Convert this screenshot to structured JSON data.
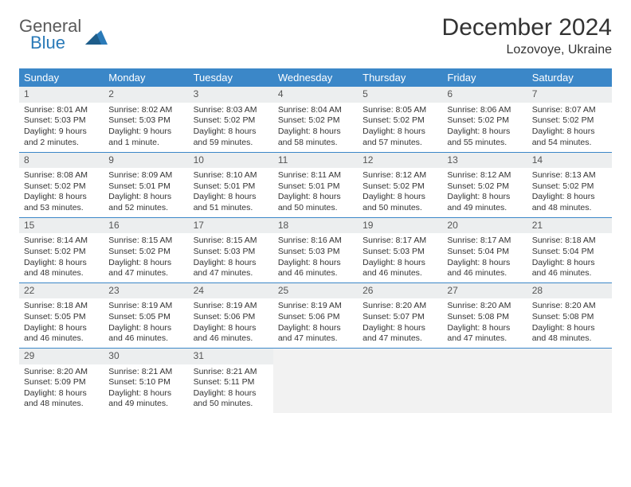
{
  "brand": {
    "line1": "General",
    "line2": "Blue"
  },
  "title": "December 2024",
  "location": "Lozovoye, Ukraine",
  "colors": {
    "header_bg": "#3b87c8",
    "header_text": "#ffffff",
    "daynum_bg": "#eceeef",
    "row_border": "#3b87c8",
    "empty_bg": "#f2f2f2",
    "brand_gray": "#5a5a5a",
    "brand_blue": "#2a7ab8"
  },
  "weekdays": [
    "Sunday",
    "Monday",
    "Tuesday",
    "Wednesday",
    "Thursday",
    "Friday",
    "Saturday"
  ],
  "weeks": [
    [
      {
        "n": "1",
        "sr": "Sunrise: 8:01 AM",
        "ss": "Sunset: 5:03 PM",
        "dl": "Daylight: 9 hours and 2 minutes."
      },
      {
        "n": "2",
        "sr": "Sunrise: 8:02 AM",
        "ss": "Sunset: 5:03 PM",
        "dl": "Daylight: 9 hours and 1 minute."
      },
      {
        "n": "3",
        "sr": "Sunrise: 8:03 AM",
        "ss": "Sunset: 5:02 PM",
        "dl": "Daylight: 8 hours and 59 minutes."
      },
      {
        "n": "4",
        "sr": "Sunrise: 8:04 AM",
        "ss": "Sunset: 5:02 PM",
        "dl": "Daylight: 8 hours and 58 minutes."
      },
      {
        "n": "5",
        "sr": "Sunrise: 8:05 AM",
        "ss": "Sunset: 5:02 PM",
        "dl": "Daylight: 8 hours and 57 minutes."
      },
      {
        "n": "6",
        "sr": "Sunrise: 8:06 AM",
        "ss": "Sunset: 5:02 PM",
        "dl": "Daylight: 8 hours and 55 minutes."
      },
      {
        "n": "7",
        "sr": "Sunrise: 8:07 AM",
        "ss": "Sunset: 5:02 PM",
        "dl": "Daylight: 8 hours and 54 minutes."
      }
    ],
    [
      {
        "n": "8",
        "sr": "Sunrise: 8:08 AM",
        "ss": "Sunset: 5:02 PM",
        "dl": "Daylight: 8 hours and 53 minutes."
      },
      {
        "n": "9",
        "sr": "Sunrise: 8:09 AM",
        "ss": "Sunset: 5:01 PM",
        "dl": "Daylight: 8 hours and 52 minutes."
      },
      {
        "n": "10",
        "sr": "Sunrise: 8:10 AM",
        "ss": "Sunset: 5:01 PM",
        "dl": "Daylight: 8 hours and 51 minutes."
      },
      {
        "n": "11",
        "sr": "Sunrise: 8:11 AM",
        "ss": "Sunset: 5:01 PM",
        "dl": "Daylight: 8 hours and 50 minutes."
      },
      {
        "n": "12",
        "sr": "Sunrise: 8:12 AM",
        "ss": "Sunset: 5:02 PM",
        "dl": "Daylight: 8 hours and 50 minutes."
      },
      {
        "n": "13",
        "sr": "Sunrise: 8:12 AM",
        "ss": "Sunset: 5:02 PM",
        "dl": "Daylight: 8 hours and 49 minutes."
      },
      {
        "n": "14",
        "sr": "Sunrise: 8:13 AM",
        "ss": "Sunset: 5:02 PM",
        "dl": "Daylight: 8 hours and 48 minutes."
      }
    ],
    [
      {
        "n": "15",
        "sr": "Sunrise: 8:14 AM",
        "ss": "Sunset: 5:02 PM",
        "dl": "Daylight: 8 hours and 48 minutes."
      },
      {
        "n": "16",
        "sr": "Sunrise: 8:15 AM",
        "ss": "Sunset: 5:02 PM",
        "dl": "Daylight: 8 hours and 47 minutes."
      },
      {
        "n": "17",
        "sr": "Sunrise: 8:15 AM",
        "ss": "Sunset: 5:03 PM",
        "dl": "Daylight: 8 hours and 47 minutes."
      },
      {
        "n": "18",
        "sr": "Sunrise: 8:16 AM",
        "ss": "Sunset: 5:03 PM",
        "dl": "Daylight: 8 hours and 46 minutes."
      },
      {
        "n": "19",
        "sr": "Sunrise: 8:17 AM",
        "ss": "Sunset: 5:03 PM",
        "dl": "Daylight: 8 hours and 46 minutes."
      },
      {
        "n": "20",
        "sr": "Sunrise: 8:17 AM",
        "ss": "Sunset: 5:04 PM",
        "dl": "Daylight: 8 hours and 46 minutes."
      },
      {
        "n": "21",
        "sr": "Sunrise: 8:18 AM",
        "ss": "Sunset: 5:04 PM",
        "dl": "Daylight: 8 hours and 46 minutes."
      }
    ],
    [
      {
        "n": "22",
        "sr": "Sunrise: 8:18 AM",
        "ss": "Sunset: 5:05 PM",
        "dl": "Daylight: 8 hours and 46 minutes."
      },
      {
        "n": "23",
        "sr": "Sunrise: 8:19 AM",
        "ss": "Sunset: 5:05 PM",
        "dl": "Daylight: 8 hours and 46 minutes."
      },
      {
        "n": "24",
        "sr": "Sunrise: 8:19 AM",
        "ss": "Sunset: 5:06 PM",
        "dl": "Daylight: 8 hours and 46 minutes."
      },
      {
        "n": "25",
        "sr": "Sunrise: 8:19 AM",
        "ss": "Sunset: 5:06 PM",
        "dl": "Daylight: 8 hours and 47 minutes."
      },
      {
        "n": "26",
        "sr": "Sunrise: 8:20 AM",
        "ss": "Sunset: 5:07 PM",
        "dl": "Daylight: 8 hours and 47 minutes."
      },
      {
        "n": "27",
        "sr": "Sunrise: 8:20 AM",
        "ss": "Sunset: 5:08 PM",
        "dl": "Daylight: 8 hours and 47 minutes."
      },
      {
        "n": "28",
        "sr": "Sunrise: 8:20 AM",
        "ss": "Sunset: 5:08 PM",
        "dl": "Daylight: 8 hours and 48 minutes."
      }
    ],
    [
      {
        "n": "29",
        "sr": "Sunrise: 8:20 AM",
        "ss": "Sunset: 5:09 PM",
        "dl": "Daylight: 8 hours and 48 minutes."
      },
      {
        "n": "30",
        "sr": "Sunrise: 8:21 AM",
        "ss": "Sunset: 5:10 PM",
        "dl": "Daylight: 8 hours and 49 minutes."
      },
      {
        "n": "31",
        "sr": "Sunrise: 8:21 AM",
        "ss": "Sunset: 5:11 PM",
        "dl": "Daylight: 8 hours and 50 minutes."
      },
      null,
      null,
      null,
      null
    ]
  ]
}
